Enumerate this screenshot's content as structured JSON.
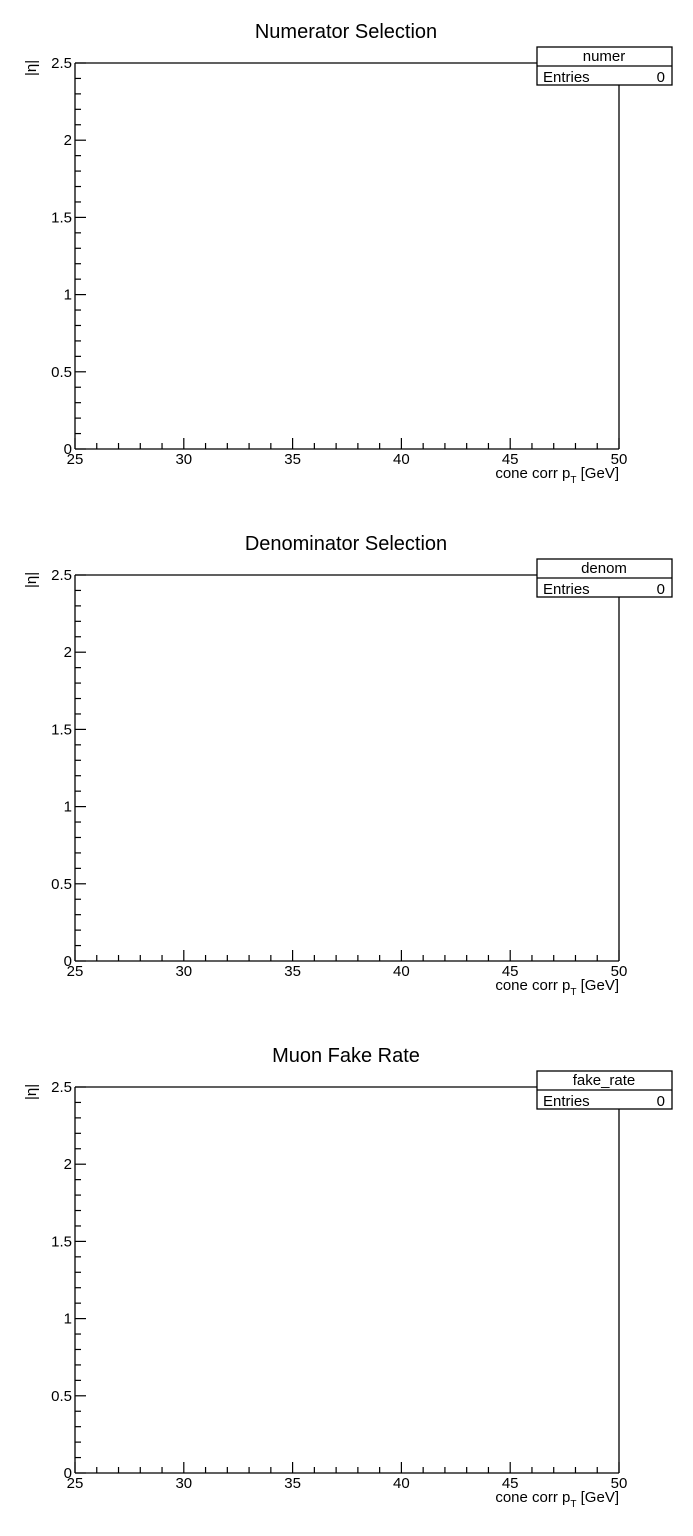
{
  "chart_data": [
    {
      "type": "heatmap",
      "title": "Numerator Selection",
      "xlabel": "cone corr p",
      "xlabel_sub": "T",
      "xlabel_unit": " [GeV]",
      "ylabel": "|η|",
      "xlim": [
        25,
        50
      ],
      "ylim": [
        0,
        2.5
      ],
      "x_ticks": [
        "25",
        "30",
        "35",
        "40",
        "45",
        "50"
      ],
      "y_ticks": [
        "0",
        "0.5",
        "1",
        "1.5",
        "2",
        "2.5"
      ],
      "legend": "top-right",
      "stats": {
        "name": "numer",
        "entries_label": "Entries",
        "entries_value": "0"
      },
      "values": []
    },
    {
      "type": "heatmap",
      "title": "Denominator Selection",
      "xlabel": "cone corr p",
      "xlabel_sub": "T",
      "xlabel_unit": " [GeV]",
      "ylabel": "|η|",
      "xlim": [
        25,
        50
      ],
      "ylim": [
        0,
        2.5
      ],
      "x_ticks": [
        "25",
        "30",
        "35",
        "40",
        "45",
        "50"
      ],
      "y_ticks": [
        "0",
        "0.5",
        "1",
        "1.5",
        "2",
        "2.5"
      ],
      "legend": "top-right",
      "stats": {
        "name": "denom",
        "entries_label": "Entries",
        "entries_value": "0"
      },
      "values": []
    },
    {
      "type": "heatmap",
      "title": "Muon Fake Rate",
      "xlabel": "cone corr p",
      "xlabel_sub": "T",
      "xlabel_unit": " [GeV]",
      "ylabel": "|η|",
      "xlim": [
        25,
        50
      ],
      "ylim": [
        0,
        2.5
      ],
      "x_ticks": [
        "25",
        "30",
        "35",
        "40",
        "45",
        "50"
      ],
      "y_ticks": [
        "0",
        "0.5",
        "1",
        "1.5",
        "2",
        "2.5"
      ],
      "legend": "top-right",
      "stats": {
        "name": "fake_rate",
        "entries_label": "Entries",
        "entries_value": "0"
      },
      "values": []
    }
  ]
}
